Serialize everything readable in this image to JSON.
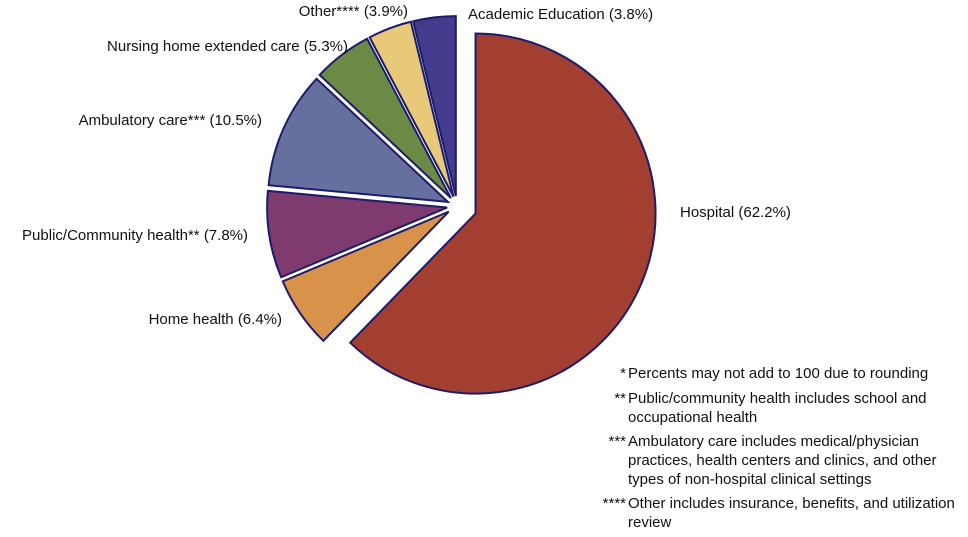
{
  "chart_data": {
    "type": "pie",
    "categories": [
      "Hospital",
      "Home health",
      "Public/Community health**",
      "Ambulatory care***",
      "Nursing home extended care",
      "Other****",
      "Academic Education"
    ],
    "values": [
      62.2,
      6.4,
      7.8,
      10.5,
      5.3,
      3.9,
      3.8
    ],
    "value_labels": [
      "(62.2%)",
      "(6.4%)",
      "(7.8%)",
      "(10.5%)",
      "(5.3%)",
      "(3.9%)",
      "(3.8%)"
    ],
    "colors": [
      "#a33f30",
      "#d9924a",
      "#7f3a6e",
      "#65709f",
      "#6a8a45",
      "#e8c97a",
      "#433c8c"
    ]
  },
  "footnotes": [
    {
      "marker": "*",
      "text": "Percents may not add to 100 due to rounding"
    },
    {
      "marker": "**",
      "text": "Public/community health includes school and occupational health"
    },
    {
      "marker": "***",
      "text": "Ambulatory care includes medical/physician practices, health centers and clinics, and other types of non-hospital clinical settings"
    },
    {
      "marker": "****",
      "text": "Other includes insurance, benefits, and utilization review"
    }
  ]
}
